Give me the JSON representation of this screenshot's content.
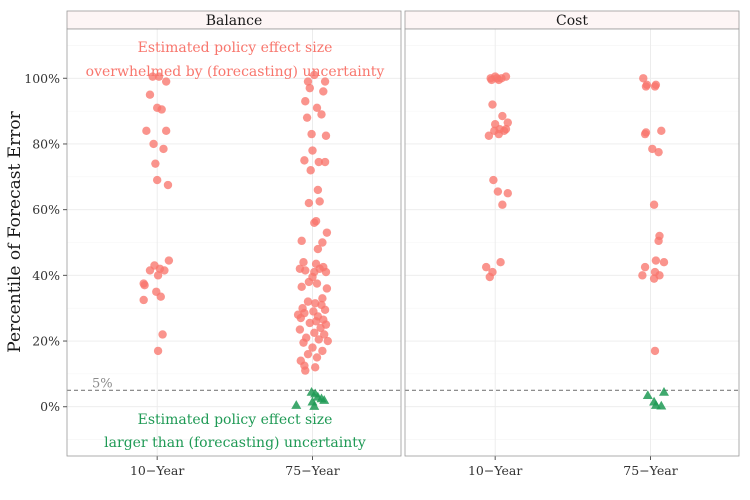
{
  "chart_data": {
    "type": "scatter",
    "ylabel": "Percentile of Forecast Error",
    "ylim": [
      -15,
      115
    ],
    "yticks": [
      0,
      20,
      40,
      60,
      80,
      100
    ],
    "ytick_labels": [
      "0%",
      "20%",
      "40%",
      "60%",
      "80%",
      "100%"
    ],
    "categories": [
      "10−Year",
      "75−Year"
    ],
    "reference_line": {
      "value": 5,
      "label": "5%",
      "style": "dashed"
    },
    "colors": {
      "overwhelmed": "#f8766d",
      "larger": "#1f9a55",
      "reference": "#7f7f7f"
    },
    "annotations": {
      "top": [
        "Estimated policy effect size",
        "overwhelmed by (forecasting) uncertainty"
      ],
      "bottom": [
        "Estimated policy effect size",
        "larger than (forecasting) uncertainty"
      ]
    },
    "panels": [
      {
        "title": "Balance",
        "points": {
          "10−Year": {
            "overwhelmed": [
              [
                -0.05,
                100.5
              ],
              [
                0.02,
                100.5
              ],
              [
                0.1,
                99
              ],
              [
                -0.08,
                95
              ],
              [
                0.0,
                91
              ],
              [
                0.05,
                90.5
              ],
              [
                -0.12,
                84
              ],
              [
                0.1,
                84
              ],
              [
                -0.04,
                80
              ],
              [
                0.07,
                78.5
              ],
              [
                -0.02,
                74
              ],
              [
                0.0,
                69
              ],
              [
                0.12,
                67.5
              ],
              [
                0.13,
                44.5
              ],
              [
                -0.03,
                43
              ],
              [
                0.03,
                42
              ],
              [
                0.08,
                41.5
              ],
              [
                -0.08,
                41.5
              ],
              [
                0.01,
                40
              ],
              [
                -0.15,
                37.5
              ],
              [
                -0.14,
                37
              ],
              [
                -0.01,
                35
              ],
              [
                0.04,
                33.5
              ],
              [
                -0.15,
                32.5
              ],
              [
                0.06,
                22
              ],
              [
                0.01,
                17
              ]
            ],
            "larger": []
          },
          "75−Year": {
            "overwhelmed": [
              [
                0.02,
                101
              ],
              [
                -0.05,
                99
              ],
              [
                0.14,
                99
              ],
              [
                -0.03,
                97
              ],
              [
                0.12,
                96
              ],
              [
                -0.08,
                93
              ],
              [
                0.05,
                91
              ],
              [
                -0.06,
                88
              ],
              [
                0.1,
                89
              ],
              [
                -0.01,
                83
              ],
              [
                0.15,
                82.5
              ],
              [
                0.0,
                78
              ],
              [
                -0.09,
                75
              ],
              [
                0.07,
                74.5
              ],
              [
                0.14,
                74.5
              ],
              [
                -0.02,
                72
              ],
              [
                0.06,
                66
              ],
              [
                -0.04,
                62
              ],
              [
                0.08,
                62.5
              ],
              [
                0.16,
                53
              ],
              [
                0.04,
                56.5
              ],
              [
                0.02,
                56
              ],
              [
                -0.12,
                50.5
              ],
              [
                0.11,
                50
              ],
              [
                0.06,
                48
              ],
              [
                -0.1,
                44
              ],
              [
                0.04,
                43.5
              ],
              [
                0.12,
                42.5
              ],
              [
                -0.14,
                42
              ],
              [
                -0.08,
                41.5
              ],
              [
                0.02,
                41
              ],
              [
                0.08,
                42
              ],
              [
                0.15,
                41
              ],
              [
                0.0,
                39.5
              ],
              [
                -0.04,
                38
              ],
              [
                0.05,
                37.5
              ],
              [
                -0.12,
                36.5
              ],
              [
                0.16,
                36
              ],
              [
                0.11,
                33
              ],
              [
                -0.05,
                32
              ],
              [
                0.03,
                31.5
              ],
              [
                -0.11,
                30
              ],
              [
                0.1,
                31
              ],
              [
                0.14,
                29.5
              ],
              [
                0.01,
                29
              ],
              [
                -0.09,
                28.5
              ],
              [
                0.06,
                27.5
              ],
              [
                -0.13,
                27
              ],
              [
                0.12,
                26.5
              ],
              [
                0.04,
                26
              ],
              [
                -0.03,
                25.5
              ],
              [
                0.09,
                24
              ],
              [
                -0.14,
                23.5
              ],
              [
                0.02,
                22.5
              ],
              [
                0.13,
                22
              ],
              [
                -0.07,
                21
              ],
              [
                0.07,
                20.5
              ],
              [
                0.17,
                20
              ],
              [
                -0.1,
                19.5
              ],
              [
                0.0,
                18
              ],
              [
                0.11,
                17
              ],
              [
                -0.05,
                16
              ],
              [
                0.05,
                15
              ],
              [
                -0.13,
                14
              ],
              [
                -0.09,
                12.5
              ],
              [
                0.03,
                12
              ],
              [
                -0.08,
                11
              ],
              [
                -0.16,
                28
              ],
              [
                0.15,
                25
              ]
            ],
            "larger": [
              [
                -0.18,
                0.5
              ],
              [
                0.02,
                0.2
              ],
              [
                0.0,
                1.5
              ],
              [
                0.06,
                3
              ],
              [
                0.03,
                4
              ],
              [
                0.1,
                2.5
              ],
              [
                -0.01,
                4.5
              ],
              [
                0.13,
                2
              ]
            ]
          }
        }
      },
      {
        "title": "Cost",
        "points": {
          "10−Year": {
            "overwhelmed": [
              [
                -0.05,
                100
              ],
              [
                0.0,
                100.5
              ],
              [
                0.02,
                100
              ],
              [
                0.07,
                100
              ],
              [
                0.12,
                100.5
              ],
              [
                -0.04,
                99.5
              ],
              [
                0.04,
                99.5
              ],
              [
                -0.03,
                92
              ],
              [
                0.08,
                88.5
              ],
              [
                0.14,
                86.5
              ],
              [
                0.0,
                86
              ],
              [
                -0.01,
                84
              ],
              [
                0.05,
                84.5
              ],
              [
                0.1,
                84
              ],
              [
                0.12,
                84.5
              ],
              [
                -0.07,
                82.5
              ],
              [
                0.04,
                83
              ],
              [
                -0.02,
                69
              ],
              [
                0.14,
                65
              ],
              [
                0.03,
                65.5
              ],
              [
                0.08,
                61.5
              ],
              [
                0.06,
                44
              ],
              [
                -0.1,
                42.5
              ],
              [
                -0.03,
                41
              ],
              [
                -0.06,
                39.5
              ]
            ],
            "larger": []
          },
          "75−Year": {
            "overwhelmed": [
              [
                -0.08,
                100
              ],
              [
                -0.04,
                98
              ],
              [
                -0.05,
                97.5
              ],
              [
                0.05,
                97.5
              ],
              [
                0.06,
                98
              ],
              [
                -0.05,
                83.5
              ],
              [
                -0.06,
                83
              ],
              [
                0.12,
                84
              ],
              [
                0.02,
                78.5
              ],
              [
                0.09,
                77.5
              ],
              [
                0.04,
                61.5
              ],
              [
                0.1,
                52
              ],
              [
                0.09,
                50.5
              ],
              [
                0.15,
                44
              ],
              [
                0.06,
                44.5
              ],
              [
                -0.06,
                42.5
              ],
              [
                0.05,
                41
              ],
              [
                -0.09,
                40
              ],
              [
                0.1,
                40
              ],
              [
                0.04,
                39
              ],
              [
                0.05,
                17
              ]
            ],
            "larger": [
              [
                -0.03,
                3.5
              ],
              [
                0.15,
                4.5
              ],
              [
                0.04,
                1.5
              ],
              [
                0.12,
                0.3
              ],
              [
                0.06,
                0.5
              ]
            ]
          }
        }
      }
    ]
  }
}
